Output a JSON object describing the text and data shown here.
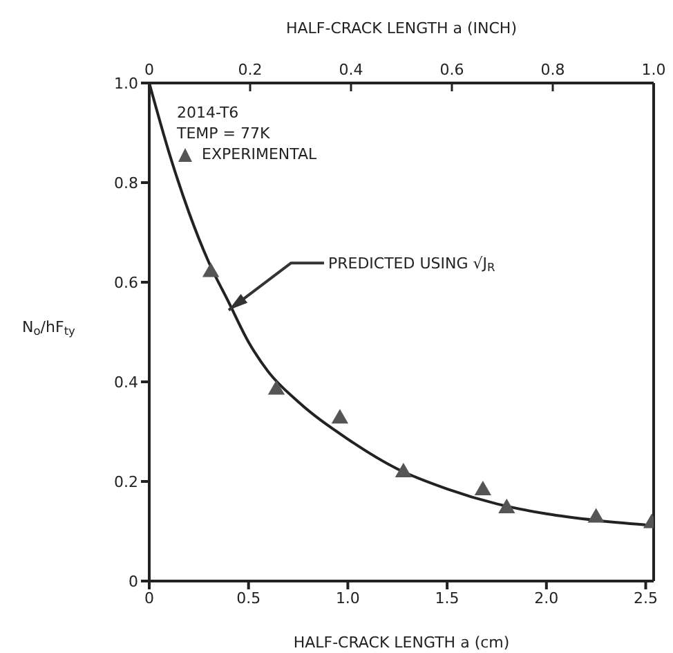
{
  "chart_data": {
    "type": "scatter",
    "xlabel": "HALF-CRACK LENGTH a (cm)",
    "x2label": "HALF-CRACK LENGTH a (INCH)",
    "ylabel": "N$_{o}$/hF$_{ty}$",
    "legend_title": "2014-T6\nTEMP = 77K",
    "legend": "top left",
    "xlim": [
      0,
      2.54
    ],
    "xticks": [
      0,
      0.5,
      {
        "value": 1,
        "label": "1.0"
      },
      1.5,
      {
        "value": 2,
        "label": "2.0"
      },
      2.5
    ],
    "x2lim": [
      0,
      1.0
    ],
    "x2ticks": [
      0,
      0.2,
      0.4,
      0.6,
      0.8,
      {
        "value": 1,
        "label": "1.0"
      }
    ],
    "ylim": [
      0,
      1.0
    ],
    "yticks": [
      0,
      0.2,
      0.4,
      0.6,
      0.8,
      {
        "value": 1,
        "label": "1.0"
      }
    ],
    "grid": false,
    "annotations": [
      {
        "text": "PREDICTED USING √J$_{R}$",
        "x": 0.4,
        "y": 0.544
      }
    ],
    "series": [
      {
        "name": "EXPERIMENTAL",
        "marker": "triangle",
        "color": "#555555",
        "x": [
          0.31,
          0.64,
          0.96,
          1.28,
          1.68,
          1.8,
          2.25,
          2.53
        ],
        "values": [
          0.62,
          0.384,
          0.326,
          0.218,
          0.182,
          0.146,
          0.127,
          0.116
        ]
      },
      {
        "type": "line",
        "marker": "none",
        "color": "#222222",
        "x": [
          0,
          0.1,
          0.2,
          0.3,
          0.4,
          0.5,
          0.6,
          0.75,
          1.0,
          1.25,
          1.5,
          1.75,
          2.0,
          2.25,
          2.5
        ],
        "values": [
          1.0,
          0.86,
          0.74,
          0.64,
          0.56,
          0.48,
          0.42,
          0.36,
          0.285,
          0.225,
          0.185,
          0.155,
          0.135,
          0.122,
          0.113
        ]
      }
    ]
  }
}
